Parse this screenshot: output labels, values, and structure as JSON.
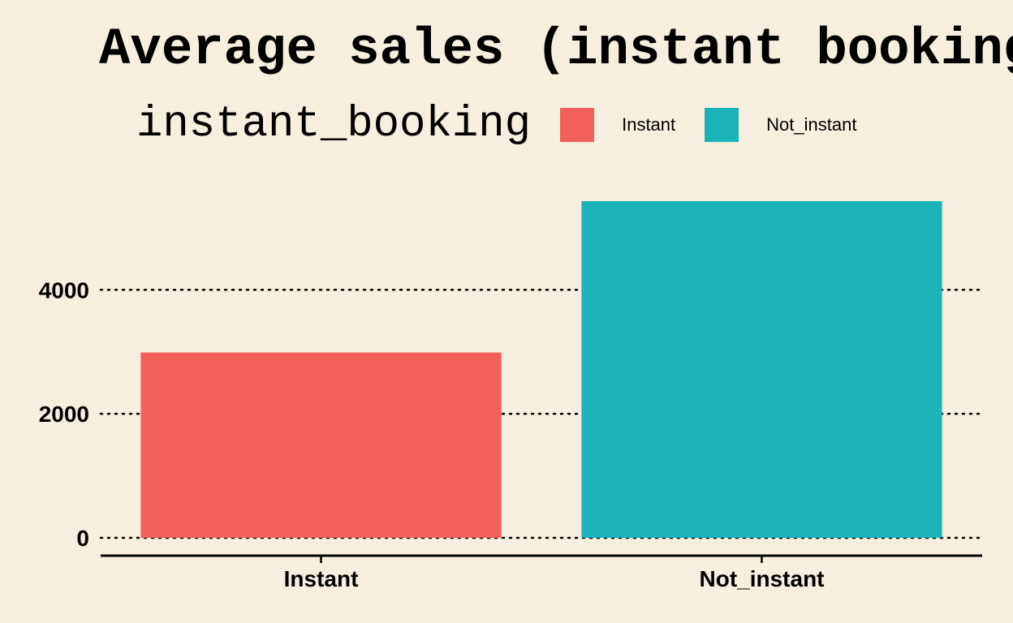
{
  "chart_data": {
    "type": "bar",
    "title": "Average sales (instant booking vs not instant)",
    "legend": {
      "title": "instant_booking",
      "position": "top",
      "entries": [
        "Instant",
        "Not_instant"
      ]
    },
    "categories": [
      "Instant",
      "Not_instant"
    ],
    "values": [
      2990,
      5430
    ],
    "colors": [
      "#f35f5b",
      "#19b3b8"
    ],
    "yticks": [
      0,
      2000,
      4000
    ],
    "ylim": [
      0,
      5430
    ],
    "grid": "horizontal dotted",
    "xlabel": "",
    "ylabel": ""
  }
}
